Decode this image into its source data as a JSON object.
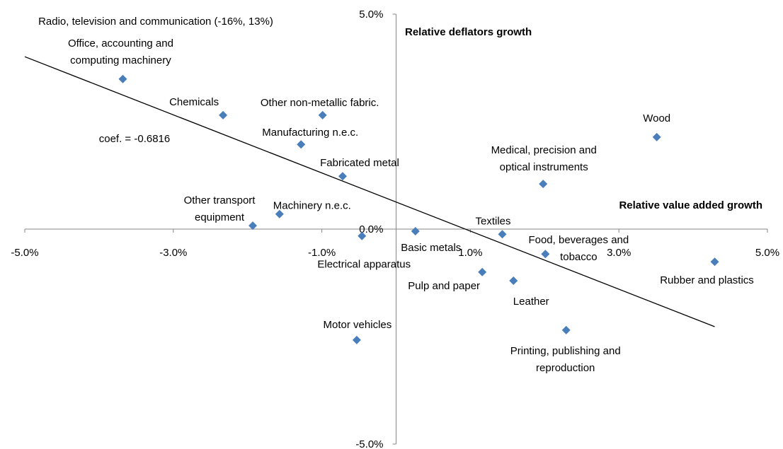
{
  "chart_data": {
    "type": "scatter",
    "annotation": "Radio, television  and  communication (-16%, 13%)",
    "coef_label": "coef. = -0.6816",
    "y_title": "Relative deflators growth",
    "x_title": "Relative value added growth",
    "color": "#4a7ebb",
    "x": [
      -3.68,
      -2.33,
      -0.99,
      -1.28,
      -0.72,
      -1.57,
      -1.93,
      -0.46,
      0.26,
      -0.53,
      1.43,
      1.16,
      1.58,
      2.01,
      2.29,
      1.98,
      3.51,
      4.29
    ],
    "values": [
      3.49,
      2.65,
      2.65,
      1.97,
      1.23,
      0.35,
      0.08,
      -0.16,
      -0.05,
      -2.58,
      -0.12,
      -1.0,
      -1.2,
      -0.58,
      -2.35,
      1.05,
      2.14,
      -0.76
    ],
    "labels": [
      [
        "Office, accounting and",
        "computing machinery"
      ],
      [
        "Chemicals"
      ],
      [
        "Other non-metallic fabric."
      ],
      [
        "Manufacturing n.e.c."
      ],
      [
        "Fabricated metal"
      ],
      [
        "Machinery  n.e.c."
      ],
      [
        "Other transport",
        "equipment"
      ],
      [
        "Electrical apparatus"
      ],
      [
        "Basic metals"
      ],
      [
        "Motor vehicles"
      ],
      [
        "Textiles"
      ],
      [
        "Pulp and paper"
      ],
      [
        "Leather"
      ],
      [
        "Food, beverages and",
        "tobacco"
      ],
      [
        "Printing, publishing and",
        "reproduction"
      ],
      [
        "Medical, precision and",
        "optical instruments"
      ],
      [
        "Wood"
      ],
      [
        "Rubber and plastics"
      ]
    ],
    "trendline": {
      "x": [
        -5,
        4.29
      ],
      "values": [
        4.01,
        -2.27
      ]
    },
    "xlim": [
      -5,
      5
    ],
    "ylim": [
      -5,
      5
    ],
    "xticks": [
      {
        "value": -5,
        "label": "-5.0%"
      },
      {
        "value": -3,
        "label": "-3.0%"
      },
      {
        "value": -1,
        "label": "-1.0%"
      },
      {
        "value": 1,
        "label": "1.0%"
      },
      {
        "value": 3,
        "label": "3.0%"
      },
      {
        "value": 5,
        "label": "5.0%"
      }
    ],
    "yticks": [
      {
        "value": 5,
        "label": "5.0%"
      },
      {
        "value": 0,
        "label": "0.0%"
      },
      {
        "value": -5,
        "label": "-5.0%"
      }
    ]
  }
}
